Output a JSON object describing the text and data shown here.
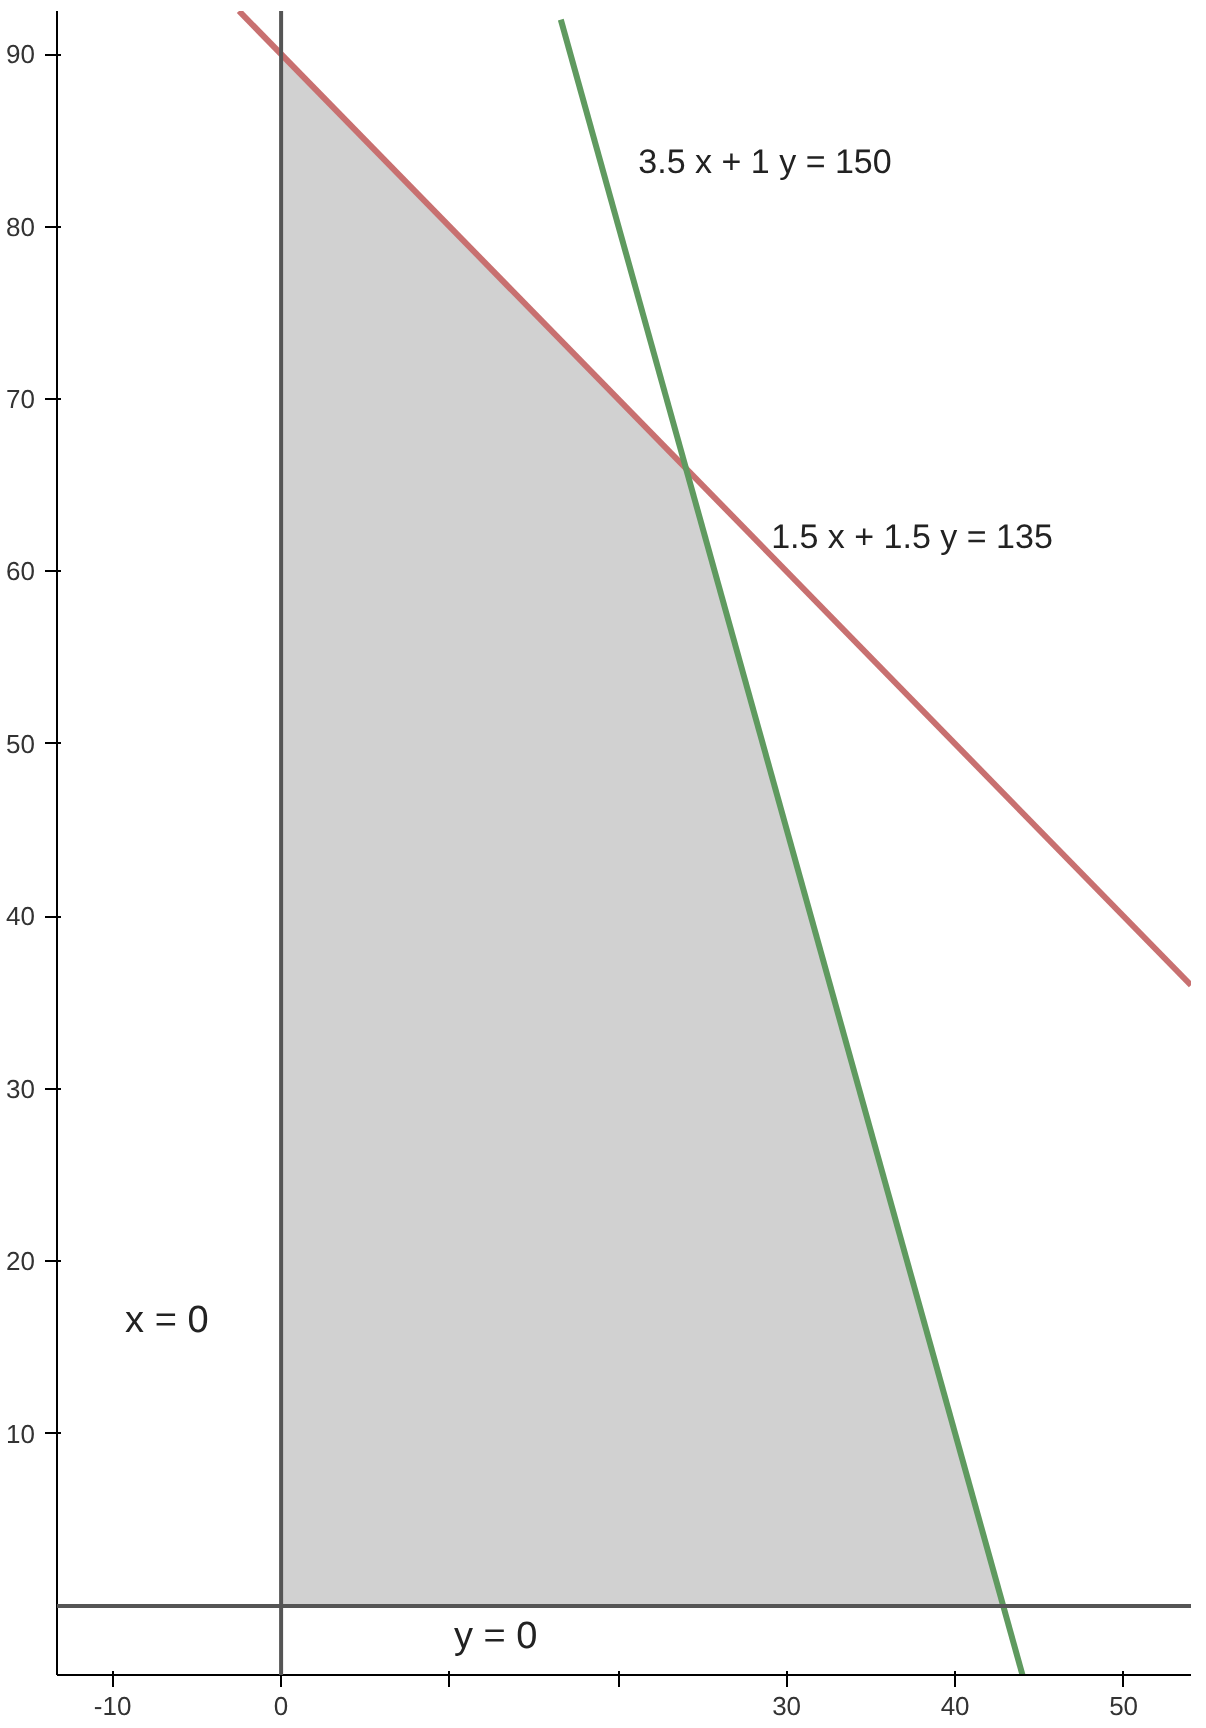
{
  "chart_data": {
    "type": "line",
    "xlim": [
      -13.3,
      54
    ],
    "ylim": [
      -4,
      92.5
    ],
    "xticks": [
      -10,
      0,
      {
        "value": 10,
        "label": null
      },
      {
        "value": 20,
        "label": null
      },
      30,
      40,
      50
    ],
    "yticks": [
      10,
      20,
      30,
      40,
      50,
      60,
      70,
      80,
      90
    ],
    "grid": false,
    "series": [
      {
        "type": "area",
        "color": "#cccccc",
        "x": [
          0,
          0,
          24,
          42.86
        ],
        "values": [
          0,
          90,
          66,
          0
        ]
      },
      {
        "name": "1.5 x + 1.5 y  =  135",
        "color": "#c87070",
        "x": [
          -2.5,
          54
        ],
        "values": [
          92.5,
          36
        ]
      },
      {
        "name": "3.5 x + 1 y  =  150",
        "color": "#5f9a5f",
        "x": [
          16.6,
          44
        ],
        "values": [
          92,
          -4
        ]
      }
    ],
    "ref_lines": [
      {
        "axis": "x",
        "value": 0,
        "color": "#555555",
        "label": "x  =  0"
      },
      {
        "axis": "y",
        "value": 0,
        "color": "#555555",
        "label": "y  =  0"
      }
    ]
  }
}
